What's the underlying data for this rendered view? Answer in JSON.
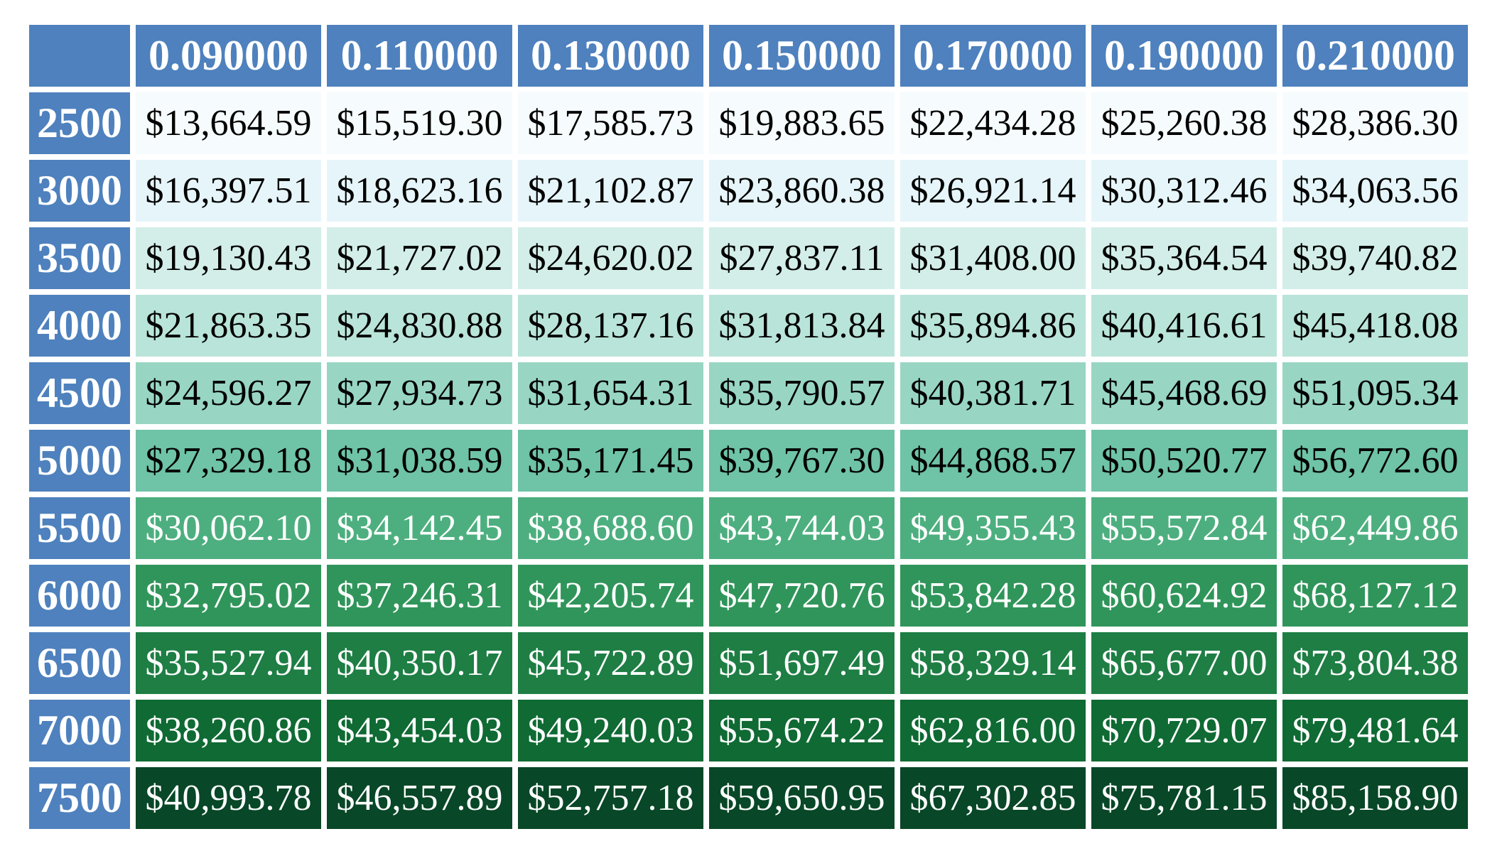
{
  "chart_data": {
    "type": "table",
    "title": "",
    "column_headers": [
      "0.090000",
      "0.110000",
      "0.130000",
      "0.150000",
      "0.170000",
      "0.190000",
      "0.210000"
    ],
    "row_headers": [
      "2500",
      "3000",
      "3500",
      "4000",
      "4500",
      "5000",
      "5500",
      "6000",
      "6500",
      "7000",
      "7500"
    ],
    "cells": [
      [
        "$13,664.59",
        "$15,519.30",
        "$17,585.73",
        "$19,883.65",
        "$22,434.28",
        "$25,260.38",
        "$28,386.30"
      ],
      [
        "$16,397.51",
        "$18,623.16",
        "$21,102.87",
        "$23,860.38",
        "$26,921.14",
        "$30,312.46",
        "$34,063.56"
      ],
      [
        "$19,130.43",
        "$21,727.02",
        "$24,620.02",
        "$27,837.11",
        "$31,408.00",
        "$35,364.54",
        "$39,740.82"
      ],
      [
        "$21,863.35",
        "$24,830.88",
        "$28,137.16",
        "$31,813.84",
        "$35,894.86",
        "$40,416.61",
        "$45,418.08"
      ],
      [
        "$24,596.27",
        "$27,934.73",
        "$31,654.31",
        "$35,790.57",
        "$40,381.71",
        "$45,468.69",
        "$51,095.34"
      ],
      [
        "$27,329.18",
        "$31,038.59",
        "$35,171.45",
        "$39,767.30",
        "$44,868.57",
        "$50,520.77",
        "$56,772.60"
      ],
      [
        "$30,062.10",
        "$34,142.45",
        "$38,688.60",
        "$43,744.03",
        "$49,355.43",
        "$55,572.84",
        "$62,449.86"
      ],
      [
        "$32,795.02",
        "$37,246.31",
        "$42,205.74",
        "$47,720.76",
        "$53,842.28",
        "$60,624.92",
        "$68,127.12"
      ],
      [
        "$35,527.94",
        "$40,350.17",
        "$45,722.89",
        "$51,697.49",
        "$58,329.14",
        "$65,677.00",
        "$73,804.38"
      ],
      [
        "$38,260.86",
        "$43,454.03",
        "$49,240.03",
        "$55,674.22",
        "$62,816.00",
        "$70,729.07",
        "$79,481.64"
      ],
      [
        "$40,993.78",
        "$46,557.89",
        "$52,757.18",
        "$59,650.95",
        "$67,302.85",
        "$75,781.15",
        "$85,158.90"
      ]
    ],
    "header_color": "#4e81bd",
    "header_text_color": "#ffffff",
    "row_colors": [
      "#f6fbfd",
      "#e6f5f9",
      "#d3eee9",
      "#b9e4d9",
      "#98d6c3",
      "#6fc3a7",
      "#4daf7f",
      "#30955a",
      "#1e7e44",
      "#0f6a33",
      "#084727"
    ],
    "row_text_colors": [
      "#000000",
      "#000000",
      "#000000",
      "#000000",
      "#000000",
      "#000000",
      "#ffffff",
      "#ffffff",
      "#ffffff",
      "#ffffff",
      "#ffffff"
    ]
  }
}
